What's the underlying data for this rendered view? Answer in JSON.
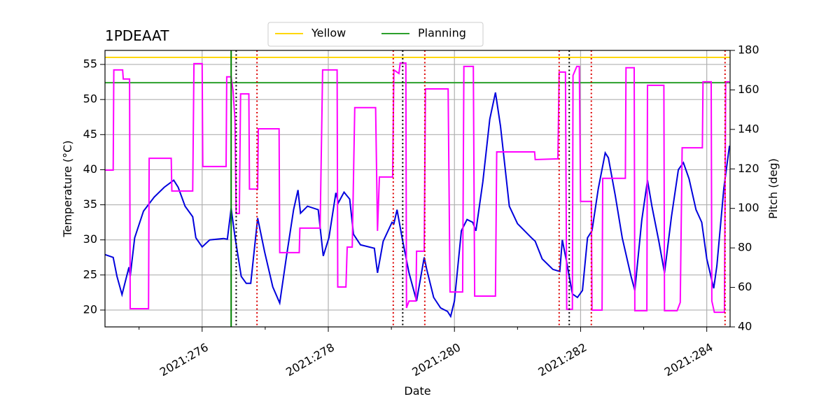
{
  "chart_data": {
    "type": "line",
    "title": "1PDEAAT",
    "xlabel": "Date",
    "ylabel": "Temperature (°C)",
    "y2label": "Pitch (deg)",
    "xlim": [
      274.46,
      284.37
    ],
    "ylim": [
      17.6,
      57.0
    ],
    "y2lim": [
      40,
      180
    ],
    "xticks": [
      {
        "value": 276,
        "label": "2021:276"
      },
      {
        "value": 278,
        "label": "2021:278"
      },
      {
        "value": 280,
        "label": "2021:280"
      },
      {
        "value": 282,
        "label": "2021:282"
      },
      {
        "value": 284,
        "label": "2021:284"
      }
    ],
    "xminor": [
      275,
      277,
      279,
      281,
      283
    ],
    "yticks": [
      20,
      25,
      30,
      35,
      40,
      45,
      50,
      55
    ],
    "y2ticks": [
      40,
      60,
      80,
      100,
      120,
      140,
      160,
      180
    ],
    "grid": true,
    "y2color": "#ff00ff",
    "limits": [
      {
        "name": "Yellow",
        "color": "#ffd700",
        "value": 56
      },
      {
        "name": "Planning",
        "color": "#2ca02c",
        "value": 52.4
      }
    ],
    "vlines": [
      {
        "x": 276.46,
        "color": "#008000",
        "style": "solid"
      },
      {
        "x": 276.54,
        "color": "#000000",
        "style": "dotted"
      },
      {
        "x": 279.18,
        "color": "#000000",
        "style": "dotted"
      },
      {
        "x": 281.82,
        "color": "#000000",
        "style": "dotted"
      },
      {
        "x": 276.87,
        "color": "#dd0000",
        "style": "dotted"
      },
      {
        "x": 279.03,
        "color": "#dd0000",
        "style": "dotted"
      },
      {
        "x": 279.53,
        "color": "#dd0000",
        "style": "dotted"
      },
      {
        "x": 281.66,
        "color": "#dd0000",
        "style": "dotted"
      },
      {
        "x": 282.17,
        "color": "#dd0000",
        "style": "dotted"
      },
      {
        "x": 284.29,
        "color": "#dd0000",
        "style": "dotted"
      }
    ],
    "series": [
      {
        "color": "#ff00ff",
        "axis": "y2",
        "x": [
          274.46,
          274.59,
          274.6,
          274.74,
          274.75,
          274.85,
          274.86,
          275.15,
          275.16,
          275.51,
          275.52,
          275.85,
          275.87,
          276.0,
          276.01,
          276.38,
          276.39,
          276.46,
          276.49,
          276.52,
          276.54,
          276.59,
          276.61,
          276.74,
          276.75,
          276.88,
          276.89,
          277.22,
          277.23,
          277.54,
          277.55,
          277.87,
          277.91,
          278.14,
          278.15,
          278.28,
          278.3,
          278.38,
          278.42,
          278.75,
          278.78,
          278.81,
          279.02,
          279.04,
          279.12,
          279.14,
          279.23,
          279.24,
          279.28,
          279.39,
          279.4,
          279.52,
          279.54,
          279.9,
          279.93,
          280.13,
          280.15,
          280.3,
          280.32,
          280.65,
          280.67,
          281.27,
          281.28,
          281.64,
          281.66,
          281.76,
          281.78,
          281.87,
          281.88,
          281.94,
          281.98,
          282.0,
          282.17,
          282.18,
          282.34,
          282.35,
          282.71,
          282.72,
          282.85,
          282.86,
          283.05,
          283.06,
          283.32,
          283.33,
          283.53,
          283.58,
          283.61,
          283.93,
          283.94,
          284.07,
          284.08,
          284.12,
          284.28,
          284.3,
          284.36
        ],
        "values": [
          119.4,
          119.4,
          170.1,
          170.1,
          165.5,
          165.5,
          49.2,
          49.2,
          125.4,
          125.4,
          108.8,
          108.8,
          173.3,
          173.3,
          121.2,
          121.2,
          166.6,
          166.6,
          159.5,
          145.3,
          97.4,
          97.4,
          158.0,
          158.0,
          109.8,
          109.8,
          140.3,
          140.3,
          77.6,
          77.6,
          90.0,
          90.0,
          170.1,
          170.1,
          60.2,
          60.2,
          80.4,
          80.4,
          151.0,
          151.0,
          88.6,
          115.9,
          115.9,
          170.1,
          168.3,
          173.6,
          173.6,
          49.6,
          53.1,
          53.1,
          78.3,
          78.3,
          160.5,
          160.5,
          57.7,
          57.7,
          171.9,
          171.9,
          55.6,
          55.6,
          128.6,
          128.6,
          124.7,
          125.1,
          169.0,
          169.0,
          48.9,
          48.9,
          167.3,
          171.9,
          171.9,
          103.5,
          103.5,
          48.5,
          48.5,
          115.2,
          115.2,
          171.2,
          171.2,
          48.2,
          48.2,
          162.3,
          162.3,
          48.2,
          48.2,
          52.4,
          130.7,
          130.7,
          164.1,
          164.1,
          53.1,
          47.4,
          47.4,
          164.1,
          164.1
        ]
      },
      {
        "color": "#0000dd",
        "x": [
          274.46,
          274.59,
          274.65,
          274.73,
          274.84,
          274.86,
          274.93,
          275.07,
          275.24,
          275.4,
          275.55,
          275.62,
          275.73,
          275.85,
          275.9,
          276.0,
          276.12,
          276.34,
          276.4,
          276.46,
          276.52,
          276.62,
          276.7,
          276.77,
          276.88,
          276.99,
          277.12,
          277.23,
          277.34,
          277.45,
          277.52,
          277.56,
          277.67,
          277.84,
          277.92,
          278.01,
          278.12,
          278.16,
          278.25,
          278.34,
          278.4,
          278.51,
          278.73,
          278.78,
          278.87,
          279.01,
          279.04,
          279.09,
          279.17,
          279.28,
          279.4,
          279.52,
          279.56,
          279.67,
          279.78,
          279.89,
          279.94,
          280.0,
          280.11,
          280.2,
          280.29,
          280.34,
          280.45,
          280.56,
          280.65,
          280.73,
          280.87,
          281.0,
          281.22,
          281.28,
          281.39,
          281.56,
          281.67,
          281.71,
          281.78,
          281.87,
          281.95,
          282.03,
          282.11,
          282.18,
          282.28,
          282.39,
          282.44,
          282.55,
          282.66,
          282.8,
          282.86,
          282.97,
          283.06,
          283.13,
          283.24,
          283.33,
          283.44,
          283.55,
          283.63,
          283.72,
          283.83,
          283.92,
          284.0,
          284.11,
          284.16,
          284.27,
          284.36
        ],
        "values": [
          27.9,
          27.5,
          24.8,
          22.2,
          26.1,
          24.8,
          30.3,
          34.1,
          36.1,
          37.5,
          38.5,
          37.5,
          34.8,
          33.3,
          30.3,
          29.0,
          30.0,
          30.2,
          30.1,
          34.5,
          30.5,
          24.8,
          23.8,
          23.8,
          33.1,
          28.3,
          23.3,
          21.0,
          27.8,
          34.3,
          37.1,
          33.8,
          34.8,
          34.3,
          27.7,
          30.3,
          36.7,
          35.3,
          36.8,
          35.8,
          30.8,
          29.3,
          28.8,
          25.3,
          29.8,
          32.5,
          32.3,
          34.3,
          30.3,
          25.3,
          21.3,
          27.5,
          25.8,
          21.8,
          20.3,
          19.8,
          19.1,
          21.3,
          31.3,
          32.9,
          32.5,
          31.3,
          38.3,
          47.2,
          51.0,
          46.2,
          34.8,
          32.3,
          30.3,
          29.8,
          27.3,
          25.8,
          25.5,
          30.0,
          26.8,
          22.3,
          21.8,
          22.8,
          30.3,
          31.3,
          37.3,
          42.4,
          41.7,
          36.3,
          30.3,
          24.8,
          22.8,
          32.8,
          38.5,
          34.8,
          29.8,
          25.3,
          33.3,
          40.0,
          41.0,
          38.7,
          34.3,
          32.5,
          27.3,
          23.1,
          26.3,
          37.3,
          43.4
        ]
      }
    ]
  }
}
